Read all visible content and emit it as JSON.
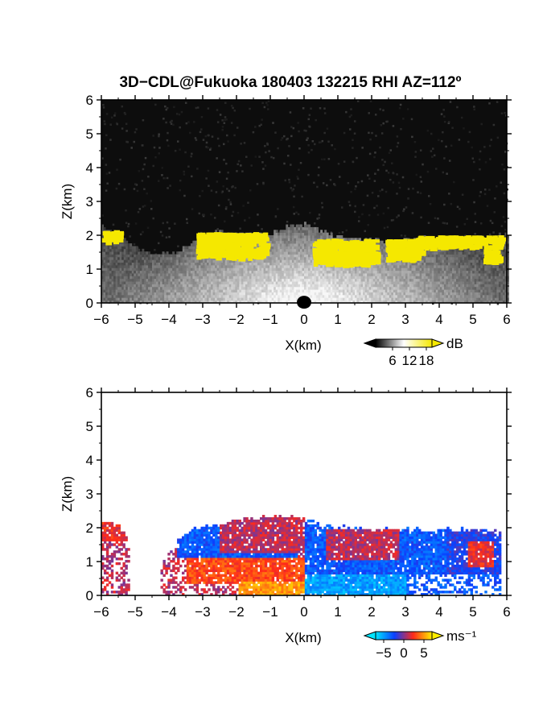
{
  "title": "3D−CDL@Fukuoka 180403 132215 RHI AZ=112º",
  "chart_data": [
    {
      "type": "heatmap",
      "name": "reflectivity",
      "xlabel": "X(km)",
      "ylabel": "Z(km)",
      "xlim": [
        -6,
        6
      ],
      "ylim": [
        0,
        6
      ],
      "xticks": [
        "−6",
        "−5",
        "−4",
        "−3",
        "−2",
        "−1",
        "0",
        "1",
        "2",
        "3",
        "4",
        "5",
        "6"
      ],
      "yticks": [
        "0",
        "1",
        "2",
        "3",
        "4",
        "5",
        "6"
      ],
      "background": "#0d0d0d",
      "colorbar": {
        "unit": "dB",
        "ticks": [
          "6",
          "12",
          "18"
        ],
        "range": [
          0,
          20
        ],
        "colors": [
          "#000000",
          "#ffffff",
          "#f5e800"
        ]
      },
      "cloud_top_km": [
        [
          -6.0,
          2.2
        ],
        [
          -5.5,
          2.0
        ],
        [
          -5.0,
          1.6
        ],
        [
          -4.5,
          1.4
        ],
        [
          -4.0,
          1.4
        ],
        [
          -3.5,
          1.6
        ],
        [
          -3.0,
          1.9
        ],
        [
          -2.5,
          2.1
        ],
        [
          -2.0,
          2.0
        ],
        [
          -1.5,
          2.0
        ],
        [
          -1.0,
          2.0
        ],
        [
          -0.5,
          2.2
        ],
        [
          0.0,
          2.3
        ],
        [
          0.5,
          2.1
        ],
        [
          1.0,
          1.9
        ],
        [
          1.5,
          1.9
        ],
        [
          2.0,
          1.8
        ],
        [
          2.5,
          1.8
        ],
        [
          3.0,
          1.8
        ],
        [
          3.5,
          1.9
        ],
        [
          4.0,
          1.9
        ],
        [
          4.5,
          1.9
        ],
        [
          5.0,
          1.9
        ],
        [
          5.5,
          1.9
        ],
        [
          6.0,
          2.0
        ]
      ],
      "high_reflectivity_regions": [
        {
          "x": [
            -6.0,
            -5.5
          ],
          "z": [
            1.85,
            2.15
          ]
        },
        {
          "x": [
            -3.2,
            -1.2
          ],
          "z": [
            1.4,
            2.1
          ]
        },
        {
          "x": [
            0.25,
            2.1
          ],
          "z": [
            1.2,
            1.9
          ]
        },
        {
          "x": [
            2.4,
            3.4
          ],
          "z": [
            1.35,
            1.9
          ]
        },
        {
          "x": [
            3.3,
            5.8
          ],
          "z": [
            1.7,
            2.0
          ]
        },
        {
          "x": [
            5.3,
            5.7
          ],
          "z": [
            1.3,
            1.6
          ]
        }
      ]
    },
    {
      "type": "heatmap",
      "name": "doppler_velocity",
      "xlabel": "X(km)",
      "ylabel": "Z(km)",
      "xlim": [
        -6,
        6
      ],
      "ylim": [
        0,
        6
      ],
      "xticks": [
        "−6",
        "−5",
        "−4",
        "−3",
        "−2",
        "−1",
        "0",
        "1",
        "2",
        "3",
        "4",
        "5",
        "6"
      ],
      "yticks": [
        "0",
        "1",
        "2",
        "3",
        "4",
        "5",
        "6"
      ],
      "background": "#ffffff",
      "colorbar": {
        "unit": "ms⁻¹",
        "ticks": [
          "−5",
          "0",
          "5"
        ],
        "range": [
          -7,
          7
        ],
        "colors": [
          "#00e5ff",
          "#0a3fff",
          "#ff2a1a",
          "#ffee00"
        ]
      },
      "coverage_top_km": [
        [
          -6.0,
          2.2
        ],
        [
          -5.5,
          2.0
        ],
        [
          -5.0,
          1.2
        ],
        [
          -4.5,
          0.6
        ],
        [
          -4.0,
          1.3
        ],
        [
          -3.5,
          1.8
        ],
        [
          -3.0,
          2.0
        ],
        [
          -2.5,
          2.1
        ],
        [
          -2.0,
          2.2
        ],
        [
          -1.5,
          2.2
        ],
        [
          -1.0,
          2.3
        ],
        [
          -0.5,
          2.3
        ],
        [
          0.0,
          2.3
        ],
        [
          0.5,
          2.1
        ],
        [
          1.0,
          2.0
        ],
        [
          1.5,
          2.0
        ],
        [
          2.0,
          1.9
        ],
        [
          2.5,
          2.0
        ],
        [
          3.0,
          1.9
        ],
        [
          3.5,
          1.9
        ],
        [
          4.0,
          1.9
        ],
        [
          4.5,
          1.9
        ],
        [
          5.0,
          1.9
        ],
        [
          5.5,
          1.9
        ],
        [
          5.7,
          1.8
        ]
      ],
      "coverage_x_km": [
        -4.3,
        5.8
      ],
      "velocity_regions_ms": [
        {
          "x": [
            -6.0,
            -5.2
          ],
          "z": [
            1.6,
            2.2
          ],
          "v": 2
        },
        {
          "x": [
            -3.8,
            -0.2
          ],
          "z": [
            1.1,
            2.3
          ],
          "v": -3
        },
        {
          "x": [
            -2.5,
            0.0
          ],
          "z": [
            1.2,
            2.3
          ],
          "v": 1
        },
        {
          "x": [
            -3.5,
            0.0
          ],
          "z": [
            0.3,
            1.1
          ],
          "v": 3
        },
        {
          "x": [
            -2.0,
            0.0
          ],
          "z": [
            0.0,
            0.4
          ],
          "v": 5
        },
        {
          "x": [
            0.0,
            3.0
          ],
          "z": [
            0.0,
            0.6
          ],
          "v": -5
        },
        {
          "x": [
            0.0,
            4.2
          ],
          "z": [
            0.6,
            1.9
          ],
          "v": -3
        },
        {
          "x": [
            0.6,
            2.8
          ],
          "z": [
            1.0,
            1.9
          ],
          "v": 1
        },
        {
          "x": [
            4.2,
            5.8
          ],
          "z": [
            0.6,
            1.9
          ],
          "v": -2
        },
        {
          "x": [
            4.8,
            5.6
          ],
          "z": [
            0.8,
            1.6
          ],
          "v": 2
        }
      ]
    }
  ]
}
